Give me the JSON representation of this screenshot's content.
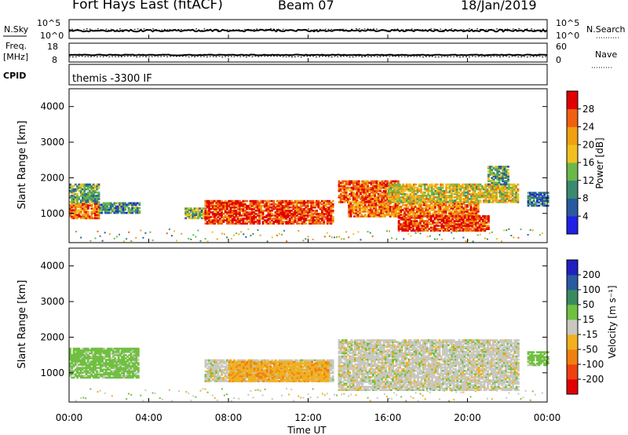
{
  "header": {
    "station": "Fort Hays East (fitACF)",
    "beam": "Beam 07",
    "date": "18/Jan/2019"
  },
  "status_panels": {
    "nsky_label": "N.Sky",
    "nsearch_label": "N.Search",
    "noise_ticks": [
      "10^5",
      "10^0"
    ],
    "freq_label_top": "Freq.",
    "freq_label_unit": "[MHz]",
    "freq_ticks": [
      "18",
      "8"
    ],
    "nave_label": "Nave",
    "nave_ticks": [
      "60",
      "0"
    ],
    "cpid_label": "CPID",
    "cpid_text": "themis -3300 IF"
  },
  "axes": {
    "xlabel": "Time UT",
    "ylabel": "Slant Range [km]",
    "x_ticks": [
      "00:00",
      "04:00",
      "08:00",
      "12:00",
      "16:00",
      "20:00",
      "00:00"
    ],
    "y_ticks": [
      "1000",
      "2000",
      "3000",
      "4000"
    ]
  },
  "colorbars": {
    "power_title": "Power [dB]",
    "power_ticks": [
      "4",
      "8",
      "12",
      "16",
      "20",
      "24",
      "28"
    ],
    "velocity_title": "Velocity [m s⁻¹]",
    "velocity_ticks": [
      "-200",
      "-100",
      "-50",
      "-15",
      "15",
      "50",
      "100",
      "200"
    ],
    "power_colors": [
      "#2020e6",
      "#2a5aa0",
      "#3a8a70",
      "#6ab84a",
      "#f0c020",
      "#f0a010",
      "#f06010",
      "#e00000"
    ],
    "velocity_colors": [
      "#e00000",
      "#f04010",
      "#f08010",
      "#f0b020",
      "#c8c8c0",
      "#70c040",
      "#3a8a60",
      "#2a5aa0",
      "#2020c0"
    ]
  },
  "chart_data": [
    {
      "type": "heatmap",
      "title": "Power [dB]",
      "xlabel": "Time UT",
      "ylabel": "Slant Range [km]",
      "xlim_hours": [
        0,
        24
      ],
      "ylim_km": [
        180,
        4500
      ],
      "colorbar_range_db": [
        0,
        32
      ],
      "regions": [
        {
          "t_start": 0.0,
          "t_end": 1.5,
          "r_min": 850,
          "r_max": 1300,
          "power_db": 24
        },
        {
          "t_start": 0.0,
          "t_end": 1.5,
          "r_min": 1300,
          "r_max": 1800,
          "power_db": 12
        },
        {
          "t_start": 1.5,
          "t_end": 3.5,
          "r_min": 1000,
          "r_max": 1300,
          "power_db": 10
        },
        {
          "t_start": 5.8,
          "t_end": 6.8,
          "r_min": 850,
          "r_max": 1150,
          "power_db": 14
        },
        {
          "t_start": 6.8,
          "t_end": 13.2,
          "r_min": 700,
          "r_max": 1350,
          "power_db": 28
        },
        {
          "t_start": 13.5,
          "t_end": 16.5,
          "r_min": 1300,
          "r_max": 1900,
          "power_db": 26
        },
        {
          "t_start": 14.0,
          "t_end": 20.5,
          "r_min": 900,
          "r_max": 1350,
          "power_db": 24
        },
        {
          "t_start": 16.5,
          "t_end": 21.0,
          "r_min": 500,
          "r_max": 950,
          "power_db": 28
        },
        {
          "t_start": 16.0,
          "t_end": 22.5,
          "r_min": 1300,
          "r_max": 1800,
          "power_db": 18
        },
        {
          "t_start": 21.0,
          "t_end": 22.0,
          "r_min": 1800,
          "r_max": 2300,
          "power_db": 12
        },
        {
          "t_start": 23.0,
          "t_end": 24.0,
          "r_min": 1200,
          "r_max": 1600,
          "power_db": 8
        }
      ]
    },
    {
      "type": "heatmap",
      "title": "Velocity [m s⁻¹]",
      "xlabel": "Time UT",
      "ylabel": "Slant Range [km]",
      "xlim_hours": [
        0,
        24
      ],
      "ylim_km": [
        180,
        4500
      ],
      "colorbar_range_ms": [
        -250,
        250
      ],
      "regions": [
        {
          "t_start": 0.0,
          "t_end": 3.5,
          "r_min": 850,
          "r_max": 1700,
          "velocity_ms": 30
        },
        {
          "t_start": 6.8,
          "t_end": 13.2,
          "r_min": 750,
          "r_max": 1350,
          "velocity_ms": 0
        },
        {
          "t_start": 8.0,
          "t_end": 13.0,
          "r_min": 750,
          "r_max": 1300,
          "velocity_ms": -40
        },
        {
          "t_start": 13.5,
          "t_end": 22.5,
          "r_min": 500,
          "r_max": 1900,
          "velocity_ms": 0
        },
        {
          "t_start": 23.0,
          "t_end": 24.0,
          "r_min": 1200,
          "r_max": 1600,
          "velocity_ms": 30
        }
      ]
    }
  ]
}
